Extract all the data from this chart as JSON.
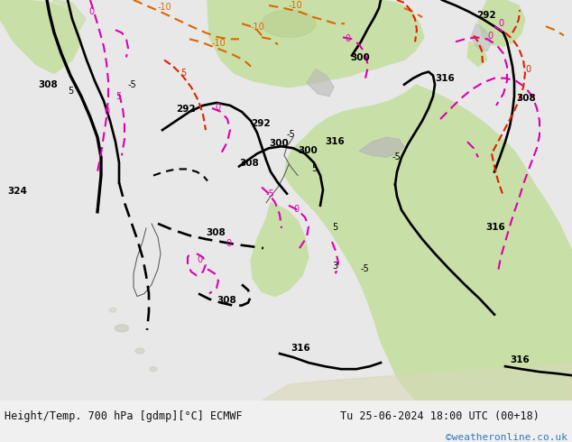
{
  "title_left": "Height/Temp. 700 hPa [gdmp][°C] ECMWF",
  "title_right": "Tu 25-06-2024 18:00 UTC (00+18)",
  "watermark": "©weatheronline.co.uk",
  "map_bg": "#e8ede8",
  "land_green": "#c8e0a8",
  "land_light": "#e0ecd0",
  "sea_grey": "#d0d8d8",
  "mountain_grey": "#b8b8b8",
  "footer_bg": "#f0f0f0",
  "footer_text_color": "#111111",
  "watermark_color": "#3377bb",
  "fig_width": 6.34,
  "fig_height": 4.9,
  "dpi": 100,
  "black_lw": 1.9,
  "black_thin_lw": 0.7,
  "pink_color": "#dd00aa",
  "pink_lw": 1.5,
  "orange_color": "#dd6600",
  "orange_lw": 1.5,
  "red_color": "#dd2200",
  "red_lw": 1.5
}
